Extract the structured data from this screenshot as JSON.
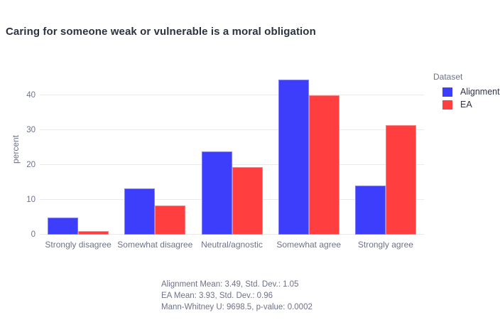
{
  "title": "Caring for someone weak or vulnerable is a moral obligation",
  "chart_data": {
    "type": "bar",
    "title": "Caring for someone weak or vulnerable is a moral obligation",
    "categories": [
      "Strongly disagree",
      "Somewhat disagree",
      "Neutral/agnostic",
      "Somewhat agree",
      "Strongly agree"
    ],
    "series": [
      {
        "name": "Alignment",
        "color": "#3d3dfc",
        "values": [
          5.0,
          13.2,
          23.8,
          44.5,
          14.0
        ]
      },
      {
        "name": "EA",
        "color": "#ff3f3f",
        "values": [
          1.0,
          8.3,
          19.3,
          40.1,
          31.4
        ]
      }
    ],
    "xlabel": "",
    "ylabel": "percent",
    "yticks": [
      0,
      10,
      20,
      30,
      40
    ],
    "ylim": [
      0,
      49
    ],
    "grid": true,
    "legend_title": "Dataset",
    "legend_position": "right"
  },
  "legend": {
    "title": "Dataset",
    "items": [
      {
        "label": "Alignment",
        "color": "#3d3dfc"
      },
      {
        "label": "EA",
        "color": "#ff3f3f"
      }
    ]
  },
  "footer": {
    "lines": [
      "Alignment Mean: 3.49, Std. Dev.: 1.05",
      "EA Mean: 3.93, Std. Dev.: 0.96",
      "Mann-Whitney U: 9698.5, p-value: 0.0002"
    ]
  },
  "colors": {
    "accent_blue": "#3d3dfc",
    "accent_red": "#ff3f3f",
    "grid_line": "#e9ebf1",
    "title_text": "#2d3240",
    "muted_text": "#6e7287",
    "legend_item_text": "#2f3346"
  }
}
